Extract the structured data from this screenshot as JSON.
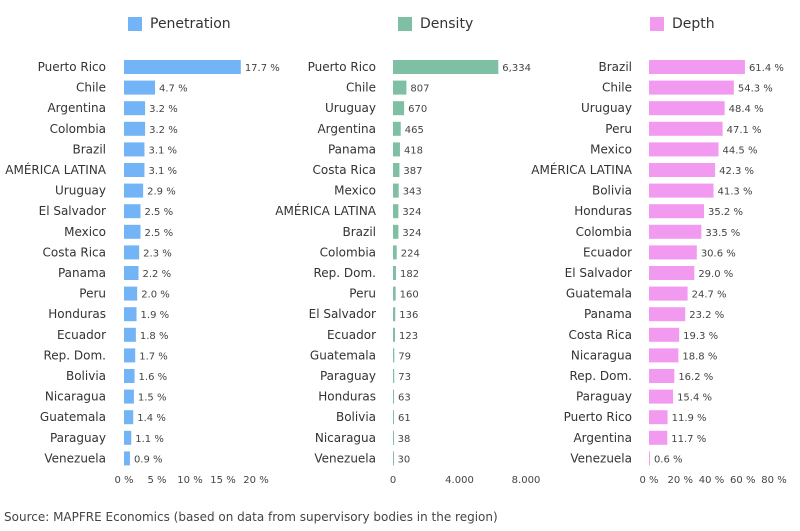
{
  "chart_data": [
    {
      "type": "bar",
      "orientation": "horizontal",
      "title": "Penetration",
      "color": "#73b4f7",
      "categories": [
        "Puerto Rico",
        "Chile",
        "Argentina",
        "Colombia",
        "Brazil",
        "AMÉRICA LATINA",
        "Uruguay",
        "El Salvador",
        "Mexico",
        "Costa Rica",
        "Panama",
        "Peru",
        "Honduras",
        "Ecuador",
        "Rep. Dom.",
        "Bolivia",
        "Nicaragua",
        "Guatemala",
        "Paraguay",
        "Venezuela"
      ],
      "values": [
        17.7,
        4.7,
        3.2,
        3.2,
        3.1,
        3.1,
        2.9,
        2.5,
        2.5,
        2.3,
        2.2,
        2.0,
        1.9,
        1.8,
        1.7,
        1.6,
        1.5,
        1.4,
        1.1,
        0.9
      ],
      "labels": [
        "17.7 %",
        "4.7 %",
        "3.2 %",
        "3.2 %",
        "3.1 %",
        "3.1 %",
        "2.9 %",
        "2.5 %",
        "2.5 %",
        "2.3 %",
        "2.2 %",
        "2.0 %",
        "1.9 %",
        "1.8 %",
        "1.7 %",
        "1.6 %",
        "1.5 %",
        "1.4 %",
        "1.1 %",
        "0.9 %"
      ],
      "xlim": [
        0,
        20
      ],
      "ticks": [
        0,
        5,
        10,
        15,
        20
      ],
      "tick_labels": [
        "0 %",
        "5 %",
        "10 %",
        "15 %",
        "20 %"
      ]
    },
    {
      "type": "bar",
      "orientation": "horizontal",
      "title": "Density",
      "color": "#7fbfa3",
      "categories": [
        "Puerto Rico",
        "Chile",
        "Uruguay",
        "Argentina",
        "Panama",
        "Costa Rica",
        "Mexico",
        "AMÉRICA LATINA",
        "Brazil",
        "Colombia",
        "Rep. Dom.",
        "Peru",
        "El Salvador",
        "Ecuador",
        "Guatemala",
        "Paraguay",
        "Honduras",
        "Bolivia",
        "Nicaragua",
        "Venezuela"
      ],
      "values": [
        6334,
        807,
        670,
        465,
        418,
        387,
        343,
        324,
        324,
        224,
        182,
        160,
        136,
        123,
        79,
        73,
        63,
        61,
        38,
        30
      ],
      "labels": [
        "6,334",
        "807",
        "670",
        "465",
        "418",
        "387",
        "343",
        "324",
        "324",
        "224",
        "182",
        "160",
        "136",
        "123",
        "79",
        "73",
        "63",
        "61",
        "38",
        "30"
      ],
      "xlim": [
        0,
        8000
      ],
      "ticks": [
        0,
        4000,
        8000
      ],
      "tick_labels": [
        "0",
        "4.000",
        "8.000"
      ]
    },
    {
      "type": "bar",
      "orientation": "horizontal",
      "title": "Depth",
      "color": "#f19af0",
      "categories": [
        "Brazil",
        "Chile",
        "Uruguay",
        "Peru",
        "Mexico",
        "AMÉRICA LATINA",
        "Bolivia",
        "Honduras",
        "Colombia",
        "Ecuador",
        "El Salvador",
        "Guatemala",
        "Panama",
        "Costa Rica",
        "Nicaragua",
        "Rep. Dom.",
        "Paraguay",
        "Puerto Rico",
        "Argentina",
        "Venezuela"
      ],
      "values": [
        61.4,
        54.3,
        48.4,
        47.1,
        44.5,
        42.3,
        41.3,
        35.2,
        33.5,
        30.6,
        29.0,
        24.7,
        23.2,
        19.3,
        18.8,
        16.2,
        15.4,
        11.9,
        11.7,
        0.6
      ],
      "labels": [
        "61.4 %",
        "54.3 %",
        "48.4 %",
        "47.1 %",
        "44.5 %",
        "42.3 %",
        "41.3 %",
        "35.2 %",
        "33.5 %",
        "30.6 %",
        "29.0 %",
        "24.7 %",
        "23.2 %",
        "19.3 %",
        "18.8 %",
        "16.2 %",
        "15.4 %",
        "11.9 %",
        "11.7 %",
        "0.6 %"
      ],
      "xlim": [
        0,
        80
      ],
      "ticks": [
        0,
        20,
        40,
        60,
        80
      ],
      "tick_labels": [
        "0 %",
        "20 %",
        "40 %",
        "60 %",
        "80 %"
      ]
    }
  ],
  "legend": [
    {
      "label": "Penetration",
      "color": "#73b4f7"
    },
    {
      "label": "Density",
      "color": "#7fbfa3"
    },
    {
      "label": "Depth",
      "color": "#f19af0"
    }
  ],
  "source": "Source: MAPFRE Economics (based on data from supervisory bodies in the region)"
}
